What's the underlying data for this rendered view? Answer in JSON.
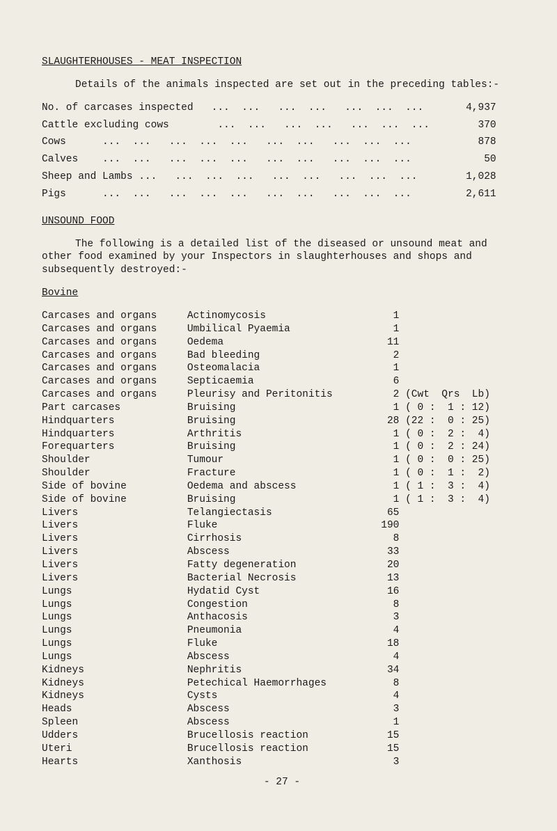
{
  "title": "SLAUGHTERHOUSES - MEAT INSPECTION",
  "intro": "Details of the animals inspected are set out in the preceding tables:-",
  "stats": [
    {
      "label": "No. of carcases inspected   ...  ...   ...  ...   ...  ...  ...",
      "value": "4,937"
    },
    {
      "label": "Cattle excluding cows        ...  ...   ...  ...   ...  ...  ...",
      "value": "370"
    },
    {
      "label": "Cows      ...  ...   ...  ...  ...   ...  ...   ...  ...  ...",
      "value": "878"
    },
    {
      "label": "Calves    ...  ...   ...  ...  ...   ...  ...   ...  ...  ...",
      "value": "50"
    },
    {
      "label": "Sheep and Lambs ...   ...  ...  ...   ...  ...   ...  ...  ...",
      "value": "1,028"
    },
    {
      "label": "Pigs      ...  ...   ...  ...  ...   ...  ...   ...  ...  ...",
      "value": "2,611"
    }
  ],
  "unsound_head": "UNSOUND FOOD",
  "unsound_para": "The following is a detailed list of the diseased or unsound meat and other food examined by your Inspectors in slaughterhouses and shops and subsequently destroyed:-",
  "bovine_head": "Bovine",
  "rows": [
    {
      "a": "Carcases and organs",
      "b": "Actinomycosis",
      "c": "1",
      "d": ""
    },
    {
      "a": "Carcases and organs",
      "b": "Umbilical Pyaemia",
      "c": "1",
      "d": ""
    },
    {
      "a": "Carcases and organs",
      "b": "Oedema",
      "c": "11",
      "d": ""
    },
    {
      "a": "Carcases and organs",
      "b": "Bad bleeding",
      "c": "2",
      "d": ""
    },
    {
      "a": "Carcases and organs",
      "b": "Osteomalacia",
      "c": "1",
      "d": ""
    },
    {
      "a": "Carcases and organs",
      "b": "Septicaemia",
      "c": "6",
      "d": ""
    },
    {
      "a": "Carcases and organs",
      "b": "Pleurisy and Peritonitis",
      "c": "2",
      "d": "(Cwt  Qrs  Lb)"
    },
    {
      "a": "Part carcases",
      "b": "Bruising",
      "c": "1",
      "d": "( 0 :  1 : 12)"
    },
    {
      "a": "Hindquarters",
      "b": "Bruising",
      "c": "28",
      "d": "(22 :  0 : 25)"
    },
    {
      "a": "Hindquarters",
      "b": "Arthritis",
      "c": "1",
      "d": "( 0 :  2 :  4)"
    },
    {
      "a": "Forequarters",
      "b": "Bruising",
      "c": "1",
      "d": "( 0 :  2 : 24)"
    },
    {
      "a": "Shoulder",
      "b": "Tumour",
      "c": "1",
      "d": "( 0 :  0 : 25)"
    },
    {
      "a": "Shoulder",
      "b": "Fracture",
      "c": "1",
      "d": "( 0 :  1 :  2)"
    },
    {
      "a": "Side of bovine",
      "b": "Oedema and abscess",
      "c": "1",
      "d": "( 1 :  3 :  4)"
    },
    {
      "a": "Side of bovine",
      "b": "Bruising",
      "c": "1",
      "d": "( 1 :  3 :  4)"
    },
    {
      "a": "Livers",
      "b": "Telangiectasis",
      "c": "65",
      "d": ""
    },
    {
      "a": "Livers",
      "b": "Fluke",
      "c": "190",
      "d": ""
    },
    {
      "a": "Livers",
      "b": "Cirrhosis",
      "c": "8",
      "d": ""
    },
    {
      "a": "Livers",
      "b": "Abscess",
      "c": "33",
      "d": ""
    },
    {
      "a": "Livers",
      "b": "Fatty degeneration",
      "c": "20",
      "d": ""
    },
    {
      "a": "Livers",
      "b": "Bacterial Necrosis",
      "c": "13",
      "d": ""
    },
    {
      "a": "Lungs",
      "b": "Hydatid Cyst",
      "c": "16",
      "d": ""
    },
    {
      "a": "Lungs",
      "b": "Congestion",
      "c": "8",
      "d": ""
    },
    {
      "a": "Lungs",
      "b": "Anthacosis",
      "c": "3",
      "d": ""
    },
    {
      "a": "Lungs",
      "b": "Pneumonia",
      "c": "4",
      "d": ""
    },
    {
      "a": "Lungs",
      "b": "Fluke",
      "c": "18",
      "d": ""
    },
    {
      "a": "Lungs",
      "b": "Abscess",
      "c": "4",
      "d": ""
    },
    {
      "a": "Kidneys",
      "b": "Nephritis",
      "c": "34",
      "d": ""
    },
    {
      "a": "Kidneys",
      "b": "Petechical Haemorrhages",
      "c": "8",
      "d": ""
    },
    {
      "a": "Kidneys",
      "b": "Cysts",
      "c": "4",
      "d": ""
    },
    {
      "a": "Heads",
      "b": "Abscess",
      "c": "3",
      "d": ""
    },
    {
      "a": "Spleen",
      "b": "Abscess",
      "c": "1",
      "d": ""
    },
    {
      "a": "Udders",
      "b": "Brucellosis reaction",
      "c": "15",
      "d": ""
    },
    {
      "a": "Uteri",
      "b": "Brucellosis reaction",
      "c": "15",
      "d": ""
    },
    {
      "a": "Hearts",
      "b": "Xanthosis",
      "c": "3",
      "d": ""
    }
  ],
  "page_num": "- 27 -"
}
